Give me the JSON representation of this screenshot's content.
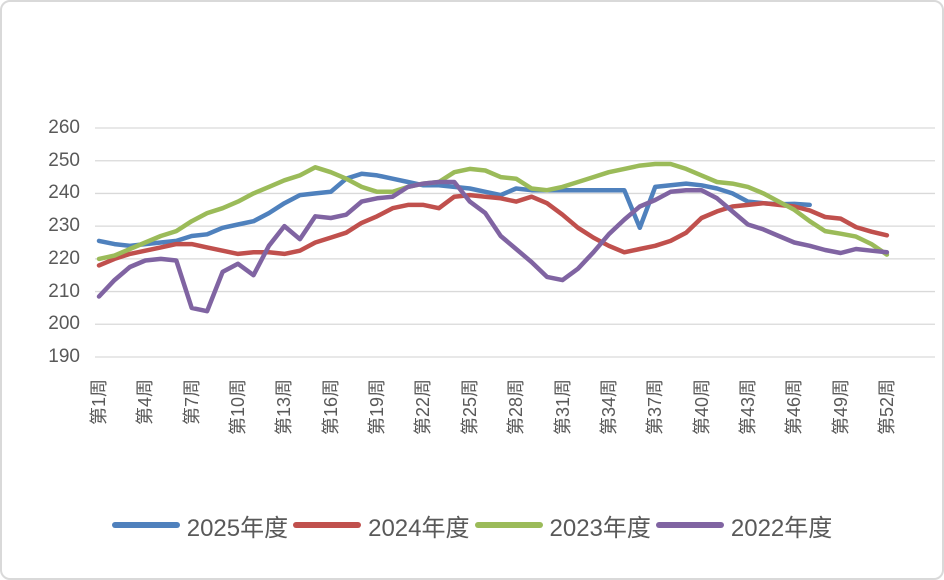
{
  "styles": {
    "background": "#FFFFFF",
    "frame_border_color": "#D9D9D9",
    "gridline_color": "#D9D9D9",
    "axis_text_color": "#595959"
  },
  "chart_data": {
    "type": "line",
    "title": "",
    "xlabel": "",
    "ylabel": "",
    "grid": true,
    "legend_position": "bottom",
    "y_axis": {
      "min": 190,
      "max": 260,
      "tick_step": 10,
      "tick_labels": [
        "260",
        "250",
        "240",
        "230",
        "220",
        "210",
        "200",
        "190"
      ]
    },
    "x_axis": {
      "unit": "week",
      "weeks_total": 52,
      "label_every_n_weeks": 3,
      "tick_weeks": [
        1,
        4,
        7,
        10,
        13,
        16,
        19,
        22,
        25,
        28,
        31,
        34,
        37,
        40,
        43,
        46,
        49,
        52
      ],
      "tick_labels": [
        "第1周",
        "第4周",
        "第7周",
        "第10周",
        "第13周",
        "第16周",
        "第19周",
        "第22周",
        "第25周",
        "第28周",
        "第31周",
        "第34周",
        "第37周",
        "第40周",
        "第43周",
        "第46周",
        "第49周",
        "第52周"
      ]
    },
    "series": [
      {
        "name": "2025年度",
        "color": "#4F81BD",
        "values": [
          225.5,
          224.5,
          224,
          224.5,
          225,
          225.5,
          227,
          227.5,
          229.5,
          230.5,
          231.5,
          234,
          237,
          239.5,
          240,
          240.5,
          244.5,
          246,
          245.5,
          244.5,
          243.5,
          242.5,
          242.5,
          242,
          241.5,
          240.5,
          239.5,
          241.5,
          241,
          241,
          241,
          241,
          241,
          241,
          241,
          229.5,
          242,
          242.5,
          243,
          242.5,
          241.5,
          240,
          237.5,
          237,
          236.7,
          236.8,
          236.5,
          null,
          null,
          null,
          null,
          null
        ]
      },
      {
        "name": "2024年度",
        "color": "#C0504D",
        "values": [
          218,
          220,
          221.5,
          222.5,
          223.5,
          224.5,
          224.5,
          223.5,
          222.5,
          221.5,
          222,
          222,
          221.5,
          222.5,
          225,
          226.5,
          228,
          231,
          233,
          235.5,
          236.5,
          236.5,
          235.5,
          239,
          239.5,
          239,
          238.5,
          237.5,
          239,
          237,
          233.5,
          229.5,
          226.5,
          224,
          222,
          223,
          224,
          225.5,
          228,
          232.5,
          234.5,
          236,
          236.5,
          237,
          236.5,
          236,
          234.8,
          232.8,
          232.3,
          229.7,
          228.3,
          227.2
        ]
      },
      {
        "name": "2023年度",
        "color": "#9BBB59",
        "values": [
          220,
          221,
          223,
          225,
          227,
          228.5,
          231.5,
          234,
          235.5,
          237.5,
          240,
          242,
          244,
          245.5,
          248,
          246.5,
          244.5,
          242,
          240.5,
          240.5,
          242,
          243,
          243.5,
          246.5,
          247.5,
          247,
          245,
          244.5,
          241.5,
          241,
          242,
          243.5,
          245,
          246.5,
          247.5,
          248.5,
          249,
          249,
          247.5,
          245.5,
          243.5,
          243,
          242,
          240,
          237.5,
          235,
          231.5,
          228.5,
          227.7,
          226.8,
          224.5,
          221.3
        ]
      },
      {
        "name": "2022年度",
        "color": "#8064A2",
        "values": [
          208.5,
          213.5,
          217.5,
          219.5,
          220,
          219.5,
          205,
          204,
          216,
          218.5,
          215,
          224,
          230,
          226,
          233,
          232.5,
          233.5,
          237.5,
          238.5,
          239,
          242,
          243,
          243.5,
          243.5,
          237.5,
          234,
          227,
          223,
          219,
          214.5,
          213.5,
          217,
          222,
          227.5,
          232,
          236,
          238,
          240.5,
          241,
          241,
          238.5,
          234.5,
          230.5,
          229,
          227,
          225,
          224,
          222.7,
          221.8,
          223,
          222.5,
          222
        ]
      }
    ]
  }
}
